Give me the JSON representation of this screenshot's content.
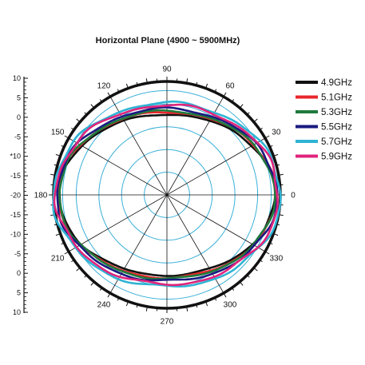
{
  "chart_data": {
    "type": "polar",
    "title": "Horizontal Plane (4900 ~ 5900MHz)",
    "radial_scale_labels": [
      "10",
      "5",
      "0",
      "-5",
      "*10",
      "-15",
      "-20",
      "-15",
      "-10",
      "-5",
      "0",
      "5",
      "10"
    ],
    "angle_labels": [
      "0",
      "30",
      "60",
      "90",
      "120",
      "150",
      "180",
      "210",
      "240",
      "270",
      "300",
      "330"
    ],
    "grid": true,
    "legend_position": "right",
    "series": [
      {
        "name": "4.9GHz",
        "color": "#111111",
        "gain_rx": 0.95,
        "gain_ry": 0.71,
        "wobble": 0.006,
        "phase": 0.3
      },
      {
        "name": "5.1GHz",
        "color": "#e8262b",
        "gain_rx": 0.96,
        "gain_ry": 0.73,
        "wobble": 0.007,
        "phase": 1.1
      },
      {
        "name": "5.3GHz",
        "color": "#1e7a3c",
        "gain_rx": 0.95,
        "gain_ry": 0.74,
        "wobble": 0.008,
        "phase": 2.0
      },
      {
        "name": "5.5GHz",
        "color": "#1a1a80",
        "gain_rx": 0.97,
        "gain_ry": 0.76,
        "wobble": 0.01,
        "phase": 2.7
      },
      {
        "name": "5.7GHz",
        "color": "#2fb3d4",
        "gain_rx": 1.0,
        "gain_ry": 0.81,
        "wobble": 0.012,
        "phase": 3.6
      },
      {
        "name": "5.9GHz",
        "color": "#e0247c",
        "gain_rx": 0.98,
        "gain_ry": 0.79,
        "wobble": 0.012,
        "phase": 4.4
      }
    ]
  }
}
